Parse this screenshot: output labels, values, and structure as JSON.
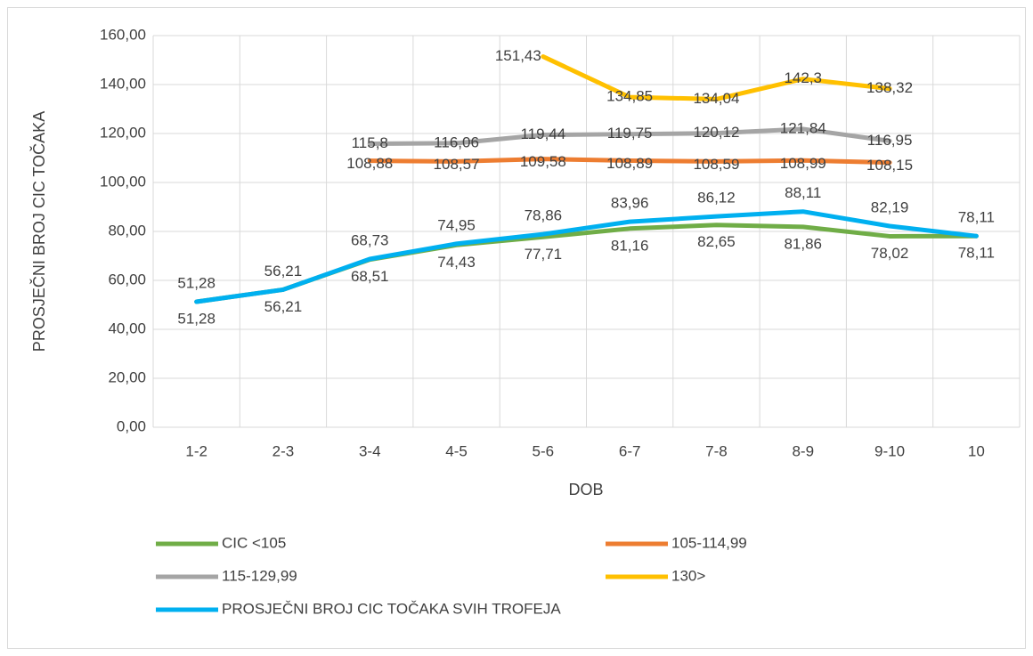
{
  "chart_data": {
    "type": "line",
    "x_label": "DOB",
    "y_label": "PROSJEČNI BROJ CIC TOČAKA",
    "categories": [
      "1-2",
      "2-3",
      "3-4",
      "4-5",
      "5-6",
      "6-7",
      "7-8",
      "8-9",
      "9-10",
      "10"
    ],
    "ylim": [
      0,
      160
    ],
    "yticks": [
      {
        "value": 0,
        "label": "0,00"
      },
      {
        "value": 20,
        "label": "20,00"
      },
      {
        "value": 40,
        "label": "40,00"
      },
      {
        "value": 60,
        "label": "60,00"
      },
      {
        "value": 80,
        "label": "80,00"
      },
      {
        "value": 100,
        "label": "100,00"
      },
      {
        "value": 120,
        "label": "120,00"
      },
      {
        "value": 140,
        "label": "140,00"
      },
      {
        "value": 160,
        "label": "160,00"
      }
    ],
    "grid": true,
    "legend": "bottom",
    "series": [
      {
        "name": "CIC <105",
        "color": "#70ad47",
        "values": [
          51.28,
          56.21,
          68.51,
          74.43,
          77.71,
          81.16,
          82.65,
          81.86,
          78.02,
          78.11
        ],
        "value_labels": [
          "51,28",
          "56,21",
          "68,51",
          "74,43",
          "77,71",
          "81,16",
          "82,65",
          "81,86",
          "78,02",
          "78,11"
        ]
      },
      {
        "name": "105-114,99",
        "color": "#ed7d31",
        "values": [
          null,
          null,
          108.88,
          108.57,
          109.58,
          108.89,
          108.59,
          108.99,
          108.15,
          null
        ],
        "value_labels": [
          null,
          null,
          "108,88",
          "108,57",
          "109,58",
          "108,89",
          "108,59",
          "108,99",
          "108,15",
          null
        ]
      },
      {
        "name": "115-129,99",
        "color": "#a5a5a5",
        "values": [
          null,
          null,
          115.8,
          116.06,
          119.44,
          119.75,
          120.12,
          121.84,
          116.95,
          null
        ],
        "value_labels": [
          null,
          null,
          "115,8",
          "116,06",
          "119,44",
          "119,75",
          "120,12",
          "121,84",
          "116,95",
          null
        ]
      },
      {
        "name": "130>",
        "color": "#ffc000",
        "values": [
          null,
          null,
          null,
          null,
          151.43,
          134.85,
          134.04,
          142.3,
          138.32,
          null
        ],
        "value_labels": [
          null,
          null,
          null,
          null,
          "151,43",
          "134,85",
          "134,04",
          "142,3",
          "138,32",
          null
        ]
      },
      {
        "name": "PROSJEČNI BROJ CIC TOČAKA SVIH TROFEJA",
        "color": "#00b0f0",
        "values": [
          51.28,
          56.21,
          68.73,
          74.95,
          78.86,
          83.96,
          86.12,
          88.11,
          82.19,
          78.11
        ],
        "value_labels": [
          "51,28",
          "56,21",
          "68,73",
          "74,95",
          "78,86",
          "83,96",
          "86,12",
          "88,11",
          "82,19",
          "78,11"
        ]
      }
    ]
  }
}
